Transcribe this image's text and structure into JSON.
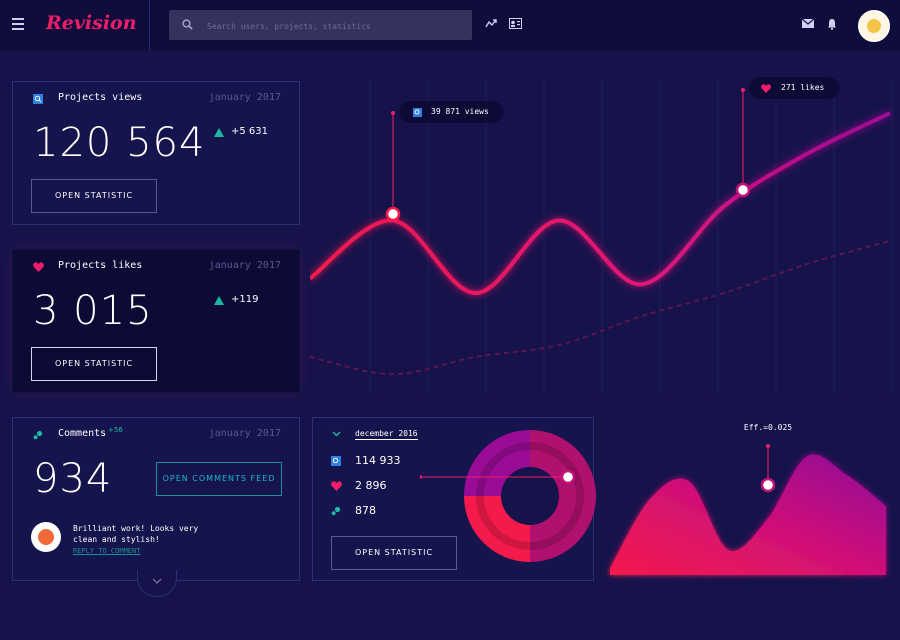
{
  "header": {
    "brand": "Revision",
    "search_placeholder": "Search users, projects, statistics"
  },
  "cards": {
    "views": {
      "title": "Projects views",
      "date": "january 2017",
      "value": "120 564",
      "delta": "+5 631",
      "button": "OPEN STATISTIC"
    },
    "likes": {
      "title": "Projects likes",
      "date": "january 2017",
      "value": "3 015",
      "delta": "+119",
      "button": "OPEN STATISTIC"
    },
    "comments": {
      "title": "Comments",
      "badge": "+56",
      "date": "january 2017",
      "value": "934",
      "button": "OPEN COMMENTS FEED",
      "comment_text_line1": "Brilliant work! Looks very",
      "comment_text_line2": "clean and stylish!",
      "reply": "REPLY TO COMMENT"
    },
    "december": {
      "title": "december 2016",
      "views": "114 933",
      "likes": "2 896",
      "comments": "878",
      "button": "OPEN STATISTIC"
    }
  },
  "main_chart": {
    "tooltip_views": "39 871 views",
    "tooltip_likes": "271 likes"
  },
  "area_chart": {
    "label": "Eff.=0.025"
  },
  "colors": {
    "accent": "#f01e6a",
    "purple": "#a0109a",
    "teal": "#1bb9a3",
    "background": "#15134a"
  },
  "chart_data": [
    {
      "type": "line",
      "series": [
        {
          "values": [
            0.35,
            0.55,
            0.3,
            0.55,
            0.33,
            0.6,
            0.78,
            0.92
          ]
        },
        {
          "values": [
            0.08,
            0.02,
            0.08,
            0.12,
            0.22,
            0.3,
            0.4,
            0.48
          ]
        }
      ],
      "x": [
        0,
        1,
        2,
        3,
        4,
        5,
        6,
        7
      ],
      "grid": true
    },
    {
      "type": "pie",
      "values": [
        50,
        25,
        25
      ],
      "colors": [
        "#b0106e",
        "#f41a4c",
        "#9a0c95"
      ]
    },
    {
      "type": "area",
      "x": [
        0,
        1,
        2,
        3,
        4,
        5,
        6,
        7
      ],
      "values": [
        0.05,
        0.6,
        0.75,
        0.2,
        0.45,
        0.95,
        0.8,
        0.55
      ],
      "title": "Eff.=0.025"
    }
  ]
}
